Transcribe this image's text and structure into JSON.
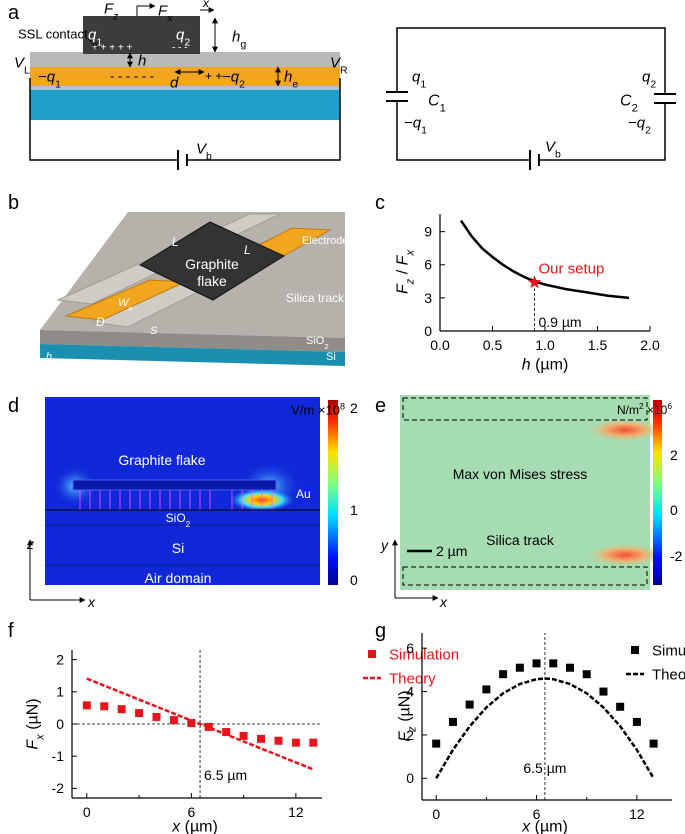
{
  "panel_labels": [
    "a",
    "b",
    "c",
    "d",
    "e",
    "f",
    "g"
  ],
  "panel_a": {
    "contact": "SSL contact",
    "fz": [
      {
        "text": "F",
        "italic": true
      },
      {
        "text": "z",
        "italic": true,
        "sub": true
      }
    ],
    "fx": [
      {
        "text": "F",
        "italic": true
      },
      {
        "text": "x",
        "italic": true,
        "sub": true
      }
    ],
    "disp": [
      {
        "text": "x",
        "italic": true
      }
    ],
    "q1": [
      {
        "text": "q",
        "italic": true
      },
      {
        "text": "1",
        "sub": true
      }
    ],
    "q2": [
      {
        "text": "q",
        "italic": true
      },
      {
        "text": "2",
        "sub": true
      }
    ],
    "plus_contact": "+ + + + +",
    "minus_contact": "- - -",
    "hg": [
      {
        "text": "h",
        "italic": true
      },
      {
        "text": "g",
        "sub": true
      }
    ],
    "vl": [
      {
        "text": "V",
        "italic": true
      },
      {
        "text": "L",
        "sub": true
      }
    ],
    "vr": [
      {
        "text": "V",
        "italic": true
      },
      {
        "text": "R",
        "sub": true
      }
    ],
    "h": [
      {
        "text": "h",
        "italic": true
      }
    ],
    "neg_q1": [
      {
        "text": "−"
      },
      {
        "text": "q",
        "italic": true
      },
      {
        "text": "1",
        "sub": true
      }
    ],
    "minus_layer": "- - - - - -",
    "d": [
      {
        "text": "d",
        "italic": true
      }
    ],
    "plus_layer": "+ +",
    "neg_q2": [
      {
        "text": "−"
      },
      {
        "text": "q",
        "italic": true
      },
      {
        "text": "2",
        "sub": true
      }
    ],
    "he": [
      {
        "text": "h",
        "italic": true
      },
      {
        "text": "e",
        "sub": true
      }
    ],
    "vb": [
      {
        "text": "V",
        "italic": true
      },
      {
        "text": "b",
        "sub": true
      }
    ],
    "circuit": {
      "q1": [
        {
          "text": "q",
          "italic": true
        },
        {
          "text": "1",
          "sub": true
        }
      ],
      "c1": [
        {
          "text": "C",
          "italic": true
        },
        {
          "text": "1",
          "sub": true
        }
      ],
      "neg_q1": [
        {
          "text": "−"
        },
        {
          "text": "q",
          "italic": true
        },
        {
          "text": "1",
          "sub": true
        }
      ],
      "q2": [
        {
          "text": "q",
          "italic": true
        },
        {
          "text": "2",
          "sub": true
        }
      ],
      "c2": [
        {
          "text": "C",
          "italic": true
        },
        {
          "text": "2",
          "sub": true
        }
      ],
      "neg_q2": [
        {
          "text": "−"
        },
        {
          "text": "q",
          "italic": true
        },
        {
          "text": "2",
          "sub": true
        }
      ],
      "vb": [
        {
          "text": "V",
          "italic": true
        },
        {
          "text": "b",
          "sub": true
        }
      ]
    }
  },
  "panel_b": {
    "flake": [
      "Graphite",
      "flake"
    ],
    "electrode": "Electrode",
    "track": "Silica track",
    "l1": [
      {
        "text": "L",
        "italic": true
      }
    ],
    "l2": [
      {
        "text": "L",
        "italic": true
      }
    ],
    "we": [
      {
        "text": "W",
        "italic": true
      },
      {
        "text": "e",
        "sub": true
      }
    ],
    "d": [
      {
        "text": "D",
        "italic": true
      }
    ],
    "s": [
      {
        "text": "S",
        "italic": true
      }
    ],
    "sio2": [
      {
        "text": "SiO"
      },
      {
        "text": "2",
        "sub": true
      }
    ],
    "si": "Si",
    "ht": [
      {
        "text": "h",
        "italic": true
      },
      {
        "text": "t",
        "sub": true
      }
    ]
  },
  "panel_d": {
    "unit": [
      {
        "text": "V/m ×10"
      },
      {
        "text": "8",
        "sup": true
      }
    ],
    "colorbar_ticks": [
      2,
      1,
      0
    ],
    "flake": "Graphite flake",
    "au": "Au",
    "sio2": [
      {
        "text": "SiO"
      },
      {
        "text": "2",
        "sub": true
      }
    ],
    "si": "Si",
    "air": "Air domain",
    "z": [
      {
        "text": "z",
        "italic": true
      }
    ],
    "x": [
      {
        "text": "x",
        "italic": true
      }
    ]
  },
  "panel_e": {
    "unit": [
      {
        "text": "N/m"
      },
      {
        "text": "2",
        "sup": true
      },
      {
        "text": " ×10"
      },
      {
        "text": "6",
        "sup": true
      }
    ],
    "colorbar_ticks": [
      2,
      0,
      -2
    ],
    "stress": "Max von Mises stress",
    "track": "Silica track",
    "scale": "2 µm",
    "y": [
      {
        "text": "y",
        "italic": true
      }
    ],
    "x": [
      {
        "text": "x",
        "italic": true
      }
    ]
  },
  "chart_data": [
    {
      "type": "line",
      "xlabel": [
        {
          "text": "h",
          "italic": true
        },
        {
          "text": " (µm)"
        }
      ],
      "ylabel": [
        {
          "text": "F",
          "italic": true
        },
        {
          "text": "z",
          "italic": true,
          "sub": true
        },
        {
          "text": " / "
        },
        {
          "text": "F",
          "italic": true
        },
        {
          "text": "x",
          "italic": true,
          "sub": true
        }
      ],
      "xlim": [
        0,
        2
      ],
      "ylim": [
        0,
        10.6
      ],
      "xticks": [
        {
          "value": 0,
          "label": "0.0"
        },
        0.5,
        {
          "value": 1,
          "label": "1.0"
        },
        1.5,
        {
          "value": 2,
          "label": "2.0"
        }
      ],
      "yticks": [
        0,
        3,
        6,
        9
      ],
      "ref_x": 0.9,
      "ref_x_label": "0.9 µm",
      "annotation": "Our setup",
      "annotation_color": "#e8141c",
      "series": [
        {
          "type": "line",
          "color": "#000000",
          "x": [
            0.2,
            0.3,
            0.4,
            0.5,
            0.6,
            0.7,
            0.8,
            0.9,
            1.0,
            1.2,
            1.4,
            1.6,
            1.8
          ],
          "values": [
            10,
            8.6,
            7.5,
            6.7,
            6.0,
            5.4,
            4.9,
            4.5,
            4.2,
            3.8,
            3.5,
            3.2,
            3.0
          ]
        },
        {
          "type": "scatter",
          "marker": "star",
          "color": "#e8141c",
          "x": [
            0.9
          ],
          "values": [
            4.4
          ]
        }
      ]
    },
    {
      "type": "scatter",
      "xlabel": [
        {
          "text": "x",
          "italic": true
        },
        {
          "text": " (µm)"
        }
      ],
      "ylabel": [
        {
          "text": "F",
          "italic": true
        },
        {
          "text": "x",
          "italic": true,
          "sub": true
        },
        {
          "text": " (µN)"
        }
      ],
      "xlim": [
        -0.85,
        13.5
      ],
      "ylim": [
        -2.3,
        2.3
      ],
      "xticks": [
        0,
        6,
        12
      ],
      "xminor": [
        3,
        9
      ],
      "yticks": [
        -2,
        -1,
        0,
        1,
        2
      ],
      "ref_x": 6.5,
      "ref_x_label": "6.5 µm",
      "ref_y": 0,
      "legend": "upper right",
      "series": [
        {
          "name": "Simulation",
          "type": "scatter",
          "marker": "square",
          "color": "#e8141c",
          "x": [
            0,
            1,
            2,
            3,
            4,
            5,
            6,
            7,
            8,
            9,
            10,
            11,
            12,
            13
          ],
          "values": [
            0.58,
            0.55,
            0.46,
            0.34,
            0.22,
            0.12,
            0.03,
            -0.09,
            -0.25,
            -0.37,
            -0.46,
            -0.52,
            -0.58,
            -0.58
          ]
        },
        {
          "name": "Theory",
          "type": "line",
          "dashed": true,
          "color": "#e8141c",
          "x": [
            0,
            13
          ],
          "values": [
            1.41,
            -1.41
          ]
        }
      ]
    },
    {
      "type": "scatter",
      "xlabel": [
        {
          "text": "x",
          "italic": true
        },
        {
          "text": " (µm)"
        }
      ],
      "ylabel": [
        {
          "text": "F",
          "italic": true
        },
        {
          "text": "z",
          "italic": true,
          "sub": true
        },
        {
          "text": " (µN)"
        }
      ],
      "xlim": [
        -0.85,
        14.1
      ],
      "ylim": [
        -1,
        6.7
      ],
      "xticks": [
        0,
        6,
        12
      ],
      "xminor": [
        3,
        9
      ],
      "yticks": [
        0,
        2,
        4,
        6
      ],
      "ref_x": 6.5,
      "ref_x_label": "6.5 µm",
      "legend": "upper right",
      "series": [
        {
          "name": "Simulation",
          "type": "scatter",
          "marker": "square",
          "color": "#000000",
          "x": [
            0,
            1,
            2,
            3,
            4,
            5,
            6,
            7,
            8,
            9,
            10,
            11,
            12,
            13
          ],
          "values": [
            1.6,
            2.6,
            3.4,
            4.1,
            4.8,
            5.1,
            5.3,
            5.3,
            5.1,
            4.8,
            4.0,
            3.3,
            2.6,
            1.6
          ]
        },
        {
          "name": "Theory",
          "type": "line",
          "dashed": true,
          "color": "#000000",
          "x": [
            0,
            1,
            2,
            3,
            4,
            5,
            6,
            6.5,
            7,
            8,
            9,
            10,
            11,
            12,
            13
          ],
          "values": [
            0,
            1.31,
            2.4,
            3.27,
            3.92,
            4.35,
            4.57,
            4.6,
            4.57,
            4.35,
            3.92,
            3.27,
            2.4,
            1.31,
            0
          ]
        }
      ]
    }
  ]
}
